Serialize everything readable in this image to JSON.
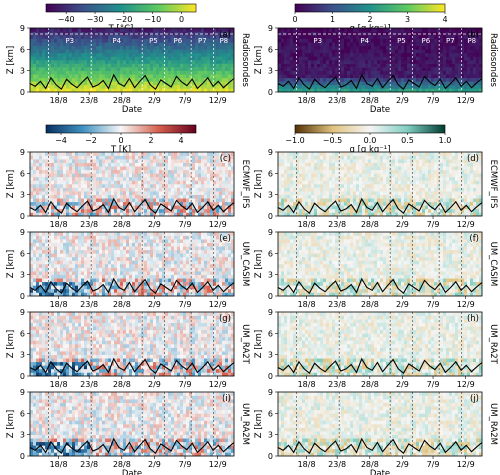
{
  "chart_data": {
    "type": "heatmap",
    "x_ticks": [
      "18/8",
      "23/8",
      "28/8",
      "2/9",
      "7/9",
      "12/9"
    ],
    "y_ticks": [
      0,
      3,
      6,
      9
    ],
    "y_label": "Z [km]",
    "x_label": "Date",
    "ylim": [
      0,
      9
    ],
    "colorbars": [
      {
        "id": "T_abs",
        "label": "T [°C]",
        "ticks": [
          "−40",
          "−30",
          "−20",
          "−10",
          "0"
        ],
        "range": [
          -47,
          5
        ],
        "colormap": "viridis"
      },
      {
        "id": "q_abs",
        "label": "q [g kg⁻¹]",
        "ticks": [
          "0",
          "1",
          "2",
          "3",
          "4"
        ],
        "range": [
          0,
          4
        ],
        "colormap": "viridis"
      },
      {
        "id": "T_diff",
        "label": "T [K]",
        "ticks": [
          "−4",
          "−2",
          "0",
          "2",
          "4"
        ],
        "range": [
          -5,
          5
        ],
        "colormap": "RdBu_r"
      },
      {
        "id": "q_diff",
        "label": "q [g kg⁻¹]",
        "ticks": [
          "−1.0",
          "−0.5",
          "0.0",
          "0.5",
          "1.0"
        ],
        "range": [
          -1,
          1
        ],
        "colormap": "BrBG"
      }
    ],
    "periods": [
      "P3",
      "P4",
      "P5",
      "P6",
      "P7",
      "P8"
    ],
    "rows": [
      "Radiosondes",
      "ECMWF_IFS",
      "UM_CASIM",
      "UM_RA2T",
      "UM_RA2M"
    ],
    "panels": [
      {
        "letter": "(a)",
        "row": "Radiosondes",
        "variable": "T_abs"
      },
      {
        "letter": "(b)",
        "row": "Radiosondes",
        "variable": "q_abs"
      },
      {
        "letter": "(c)",
        "row": "ECMWF_IFS",
        "variable": "T_diff"
      },
      {
        "letter": "(d)",
        "row": "ECMWF_IFS",
        "variable": "q_diff"
      },
      {
        "letter": "(e)",
        "row": "UM_CASIM",
        "variable": "T_diff"
      },
      {
        "letter": "(f)",
        "row": "UM_CASIM",
        "variable": "q_diff"
      },
      {
        "letter": "(g)",
        "row": "UM_RA2T",
        "variable": "T_diff"
      },
      {
        "letter": "(h)",
        "row": "UM_RA2T",
        "variable": "q_diff"
      },
      {
        "letter": "(i)",
        "row": "UM_RA2M",
        "variable": "T_diff"
      },
      {
        "letter": "(j)",
        "row": "UM_RA2M",
        "variable": "q_diff"
      }
    ],
    "boundary_layer_height_km": [
      1.2,
      0.8,
      1.5,
      0.5,
      2.0,
      1.0,
      0.4,
      1.8,
      1.1,
      0.6,
      1.4,
      2.1,
      0.7,
      1.0,
      1.6,
      0.5,
      2.4,
      1.2,
      0.8,
      1.9,
      0.6,
      1.5,
      2.3,
      1.0,
      0.4,
      1.7,
      1.2,
      0.7,
      2.2,
      1.4,
      0.9,
      1.8,
      0.5,
      1.2,
      2.0,
      0.8,
      1.5,
      0.6,
      1.3,
      1.9
    ]
  }
}
